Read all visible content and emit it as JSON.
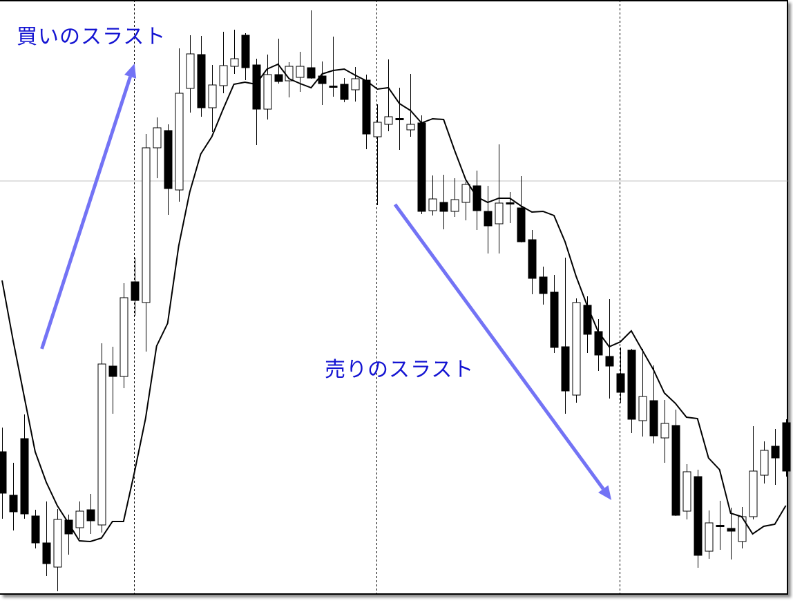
{
  "chart_data": {
    "type": "candlestick",
    "title": "",
    "xlabel": "",
    "ylabel": "",
    "grid": false,
    "legend": "none",
    "price_range": [
      3,
      90
    ],
    "candle_fields": [
      "open",
      "high",
      "low",
      "close"
    ],
    "candles": [
      [
        24.6,
        28.1,
        14.9,
        18.6
      ],
      [
        18.3,
        23.0,
        13.2,
        15.9
      ],
      [
        26.5,
        30.0,
        14.9,
        15.6
      ],
      [
        15.3,
        16.2,
        10.6,
        11.4
      ],
      [
        11.4,
        17.4,
        6.6,
        8.4
      ],
      [
        7.9,
        16.3,
        4.4,
        14.8
      ],
      [
        14.7,
        15.5,
        9.7,
        12.7
      ],
      [
        13.6,
        17.4,
        12.0,
        16.0
      ],
      [
        16.2,
        18.5,
        12.7,
        14.6
      ],
      [
        14.0,
        40.3,
        12.9,
        37.3
      ],
      [
        37.0,
        39.8,
        30.1,
        35.5
      ],
      [
        35.5,
        49.0,
        33.8,
        46.9
      ],
      [
        49.2,
        52.7,
        44.3,
        46.5
      ],
      [
        46.2,
        70.6,
        39.1,
        68.6
      ],
      [
        68.6,
        73.0,
        64.2,
        71.5
      ],
      [
        71.1,
        72.0,
        58.9,
        62.7
      ],
      [
        62.5,
        83.0,
        60.8,
        76.5
      ],
      [
        77.2,
        84.9,
        73.7,
        82.2
      ],
      [
        82.1,
        84.8,
        73.1,
        74.4
      ],
      [
        74.4,
        80.6,
        70.9,
        77.7
      ],
      [
        77.6,
        85.4,
        76.5,
        80.5
      ],
      [
        80.4,
        85.7,
        79.3,
        81.5
      ],
      [
        84.9,
        85.2,
        78.4,
        80.2
      ],
      [
        80.6,
        81.5,
        69.0,
        74.2
      ],
      [
        74.2,
        82.1,
        72.7,
        79.2
      ],
      [
        79.2,
        84.4,
        77.9,
        78.2
      ],
      [
        78.3,
        81.0,
        75.9,
        80.4
      ],
      [
        78.8,
        82.5,
        76.7,
        80.4
      ],
      [
        80.2,
        88.5,
        78.6,
        78.7
      ],
      [
        79.0,
        81.1,
        74.8,
        77.9
      ],
      [
        77.5,
        84.7,
        76.0,
        77.5
      ],
      [
        77.8,
        78.7,
        75.2,
        75.6
      ],
      [
        77.0,
        80.3,
        75.3,
        78.6
      ],
      [
        78.4,
        79.2,
        68.4,
        70.6
      ],
      [
        70.2,
        74.9,
        60.3,
        72.3
      ],
      [
        72.0,
        81.4,
        71.0,
        73.1
      ],
      [
        72.8,
        77.3,
        68.3,
        72.8
      ],
      [
        71.2,
        79.3,
        70.2,
        72.0
      ],
      [
        72.2,
        73.3,
        59.0,
        59.4
      ],
      [
        59.5,
        64.6,
        58.8,
        61.2
      ],
      [
        60.7,
        64.7,
        56.8,
        59.4
      ],
      [
        59.4,
        64.2,
        58.6,
        61.1
      ],
      [
        60.7,
        63.7,
        58.1,
        63.3
      ],
      [
        63.1,
        65.3,
        56.7,
        59.5
      ],
      [
        59.4,
        63.1,
        53.3,
        57.3
      ],
      [
        57.6,
        69.1,
        53.3,
        60.6
      ],
      [
        60.6,
        62.2,
        57.7,
        60.6
      ],
      [
        59.9,
        64.5,
        54.9,
        55.0
      ],
      [
        55.3,
        56.7,
        47.4,
        49.7
      ],
      [
        49.9,
        51.4,
        45.9,
        47.5
      ],
      [
        47.7,
        50.2,
        38.9,
        39.7
      ],
      [
        39.8,
        52.7,
        30.1,
        33.4
      ],
      [
        32.8,
        46.8,
        31.7,
        46.2
      ],
      [
        45.8,
        47.1,
        38.9,
        41.6
      ],
      [
        42.0,
        43.8,
        36.3,
        38.6
      ],
      [
        38.4,
        46.7,
        32.3,
        37.0
      ],
      [
        35.9,
        39.7,
        31.7,
        33.2
      ],
      [
        39.3,
        39.5,
        27.3,
        29.3
      ],
      [
        29.1,
        39.5,
        26.8,
        32.6
      ],
      [
        32.0,
        37.1,
        25.8,
        26.9
      ],
      [
        26.6,
        32.1,
        23.0,
        28.7
      ],
      [
        28.4,
        30.7,
        15.3,
        15.4
      ],
      [
        16.0,
        22.8,
        14.8,
        21.7
      ],
      [
        21.0,
        22.0,
        7.8,
        9.6
      ],
      [
        10.2,
        16.1,
        9.1,
        14.3
      ],
      [
        13.9,
        17.5,
        10.4,
        13.9
      ],
      [
        13.5,
        16.5,
        9.0,
        13.1
      ],
      [
        11.6,
        16.6,
        10.6,
        15.2
      ],
      [
        15.2,
        28.3,
        14.8,
        21.8
      ],
      [
        21.2,
        26.1,
        20.0,
        24.8
      ],
      [
        25.4,
        27.9,
        19.8,
        23.7
      ],
      [
        28.8,
        29.3,
        21.0,
        21.8
      ]
    ],
    "moving_average": [
      49.4,
      40.7,
      32.6,
      24.6,
      20.2,
      16.8,
      14.3,
      11.7,
      11.6,
      12.1,
      14.5,
      14.5,
      21.7,
      29.4,
      39.9,
      43.2,
      54.4,
      62.2,
      67.7,
      70.2,
      74.1,
      77.8,
      78.1,
      77.8,
      80.0,
      80.7,
      78.6,
      77.9,
      77.3,
      79.3,
      79.8,
      80.0,
      79.1,
      78.3,
      77.1,
      77.3,
      75.0,
      74.0,
      72.2,
      72.8,
      72.7,
      68.2,
      64.0,
      61.5,
      60.7,
      61.3,
      61.3,
      60.2,
      59.3,
      59.4,
      58.8,
      55.0,
      50.0,
      45.8,
      42.0,
      39.8,
      40.5,
      42.1,
      39.3,
      36.5,
      33.1,
      31.6,
      29.6,
      29.4,
      23.7,
      22.0,
      15.7,
      15.2,
      12.7,
      13.8,
      14.1,
      16.8
    ],
    "period_separators_at_candle": [
      12,
      34,
      56
    ],
    "horizontal_line_price": 63.8,
    "colors": {
      "bull_body": "#ffffff",
      "bear_body": "#000000",
      "ma_line": "#000000",
      "arrow": "#7373f5",
      "annotation_text": "#1414d2",
      "hline": "#c0c0c0"
    },
    "annotations": [
      {
        "text": "買いのスラスト",
        "arrow_from_candle": 3.6,
        "arrow_from_price": 39.5,
        "arrow_to_candle": 12,
        "arrow_to_price": 80.8
      },
      {
        "text": "売りのスラスト",
        "arrow_from_candle": 35.6,
        "arrow_from_price": 60.4,
        "arrow_to_candle": 55.2,
        "arrow_to_price": 17.6
      }
    ]
  }
}
